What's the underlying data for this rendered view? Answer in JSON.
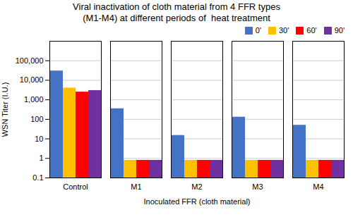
{
  "chart_data": {
    "type": "bar",
    "title": "Viral inactivation of cloth material from 4 FFR types",
    "subtitle": "(M1-M4) at different periods of  heat treatment",
    "xlabel": "Inoculated FFR (cloth material)",
    "ylabel": "WSN Titer (I.U.)",
    "categories": [
      "Control",
      "M1",
      "M2",
      "M3",
      "M4"
    ],
    "series": [
      {
        "name": "0'",
        "color": "#4472C4",
        "values": [
          30000,
          350,
          15,
          130,
          50
        ]
      },
      {
        "name": "30'",
        "color": "#FFC000",
        "values": [
          4000,
          0.8,
          0.8,
          0.8,
          0.8
        ]
      },
      {
        "name": "60'",
        "color": "#FF0000",
        "values": [
          2500,
          0.8,
          0.8,
          0.8,
          0.8
        ]
      },
      {
        "name": "90'",
        "color": "#7030A0",
        "values": [
          3000,
          0.8,
          0.8,
          0.8,
          0.8
        ]
      }
    ],
    "log": "y",
    "ylim": [
      0.1,
      1000000
    ],
    "yticks": [
      0.1,
      1,
      10,
      100,
      {
        "value": 1000,
        "label": "1,000"
      },
      {
        "value": 10000,
        "label": "10,000"
      },
      {
        "value": 100000,
        "label": "100,000"
      }
    ],
    "grid": true,
    "legend": "upper right"
  }
}
